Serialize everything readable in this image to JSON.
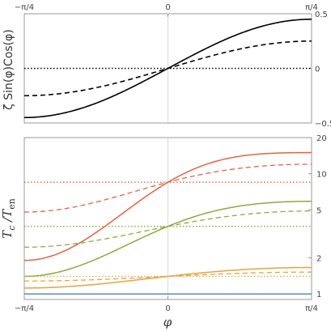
{
  "chart_data": [
    {
      "type": "line",
      "ylabel": "ζ Sin(φ)Cos(φ)",
      "xlim": [
        -0.7854,
        0.7854
      ],
      "ylim": [
        -0.5,
        0.5
      ],
      "x_ticks": [
        {
          "value": -0.7854,
          "label": "−π/4"
        },
        {
          "value": 0,
          "label": "0"
        },
        {
          "value": 0.7854,
          "label": "π/4"
        }
      ],
      "y_ticks": [
        {
          "value": 0.5,
          "label": "0.5"
        },
        {
          "value": 0,
          "label": "0"
        },
        {
          "value": -0.5,
          "label": "−0.5"
        }
      ],
      "series": [
        {
          "style": "solid",
          "color": "#000000",
          "amplitude": 0.45
        },
        {
          "style": "dashed",
          "color": "#000000",
          "amplitude": 0.25
        },
        {
          "style": "dotted",
          "color": "#000000",
          "amplitude": 0.0
        }
      ]
    },
    {
      "type": "line",
      "xlabel": "φ",
      "ylabel": "T_c /T_en",
      "y_scale": "log",
      "xlim": [
        -0.7854,
        0.7854
      ],
      "ylim": [
        0.9,
        20
      ],
      "x_ticks": [
        {
          "value": -0.7854,
          "label": "−π/4"
        },
        {
          "value": 0,
          "label": "0"
        },
        {
          "value": 0.7854,
          "label": "π/4"
        }
      ],
      "y_ticks": [
        {
          "value": 20,
          "label": "20"
        },
        {
          "value": 10,
          "label": "10"
        },
        {
          "value": 5,
          "label": "5"
        },
        {
          "value": 2,
          "label": "2"
        },
        {
          "value": 1,
          "label": "1"
        }
      ],
      "series": [
        {
          "color": "#e8623f",
          "style": "solid",
          "left": 1.9,
          "center": 8.5,
          "right": 15.0
        },
        {
          "color": "#e8623f",
          "style": "dashed",
          "left": 4.8,
          "center": 8.5,
          "right": 12.0
        },
        {
          "color": "#e8623f",
          "style": "dotted",
          "left": 8.5,
          "center": 8.5,
          "right": 8.5
        },
        {
          "color": "#8aab3a",
          "style": "solid",
          "left": 1.4,
          "center": 3.65,
          "right": 5.9
        },
        {
          "color": "#8aab3a",
          "style": "dashed",
          "left": 2.45,
          "center": 3.65,
          "right": 4.9
        },
        {
          "color": "#8aab3a",
          "style": "dotted",
          "left": 3.65,
          "center": 3.65,
          "right": 3.65
        },
        {
          "color": "#e8a33a",
          "style": "solid",
          "left": 1.12,
          "center": 1.4,
          "right": 1.66
        },
        {
          "color": "#e8a33a",
          "style": "dashed",
          "left": 1.28,
          "center": 1.4,
          "right": 1.52
        },
        {
          "color": "#e8a33a",
          "style": "dotted",
          "left": 1.4,
          "center": 1.4,
          "right": 1.4
        },
        {
          "color": "#5b8db8",
          "style": "solid",
          "left": 1.0,
          "center": 1.0,
          "right": 1.0
        }
      ]
    }
  ]
}
